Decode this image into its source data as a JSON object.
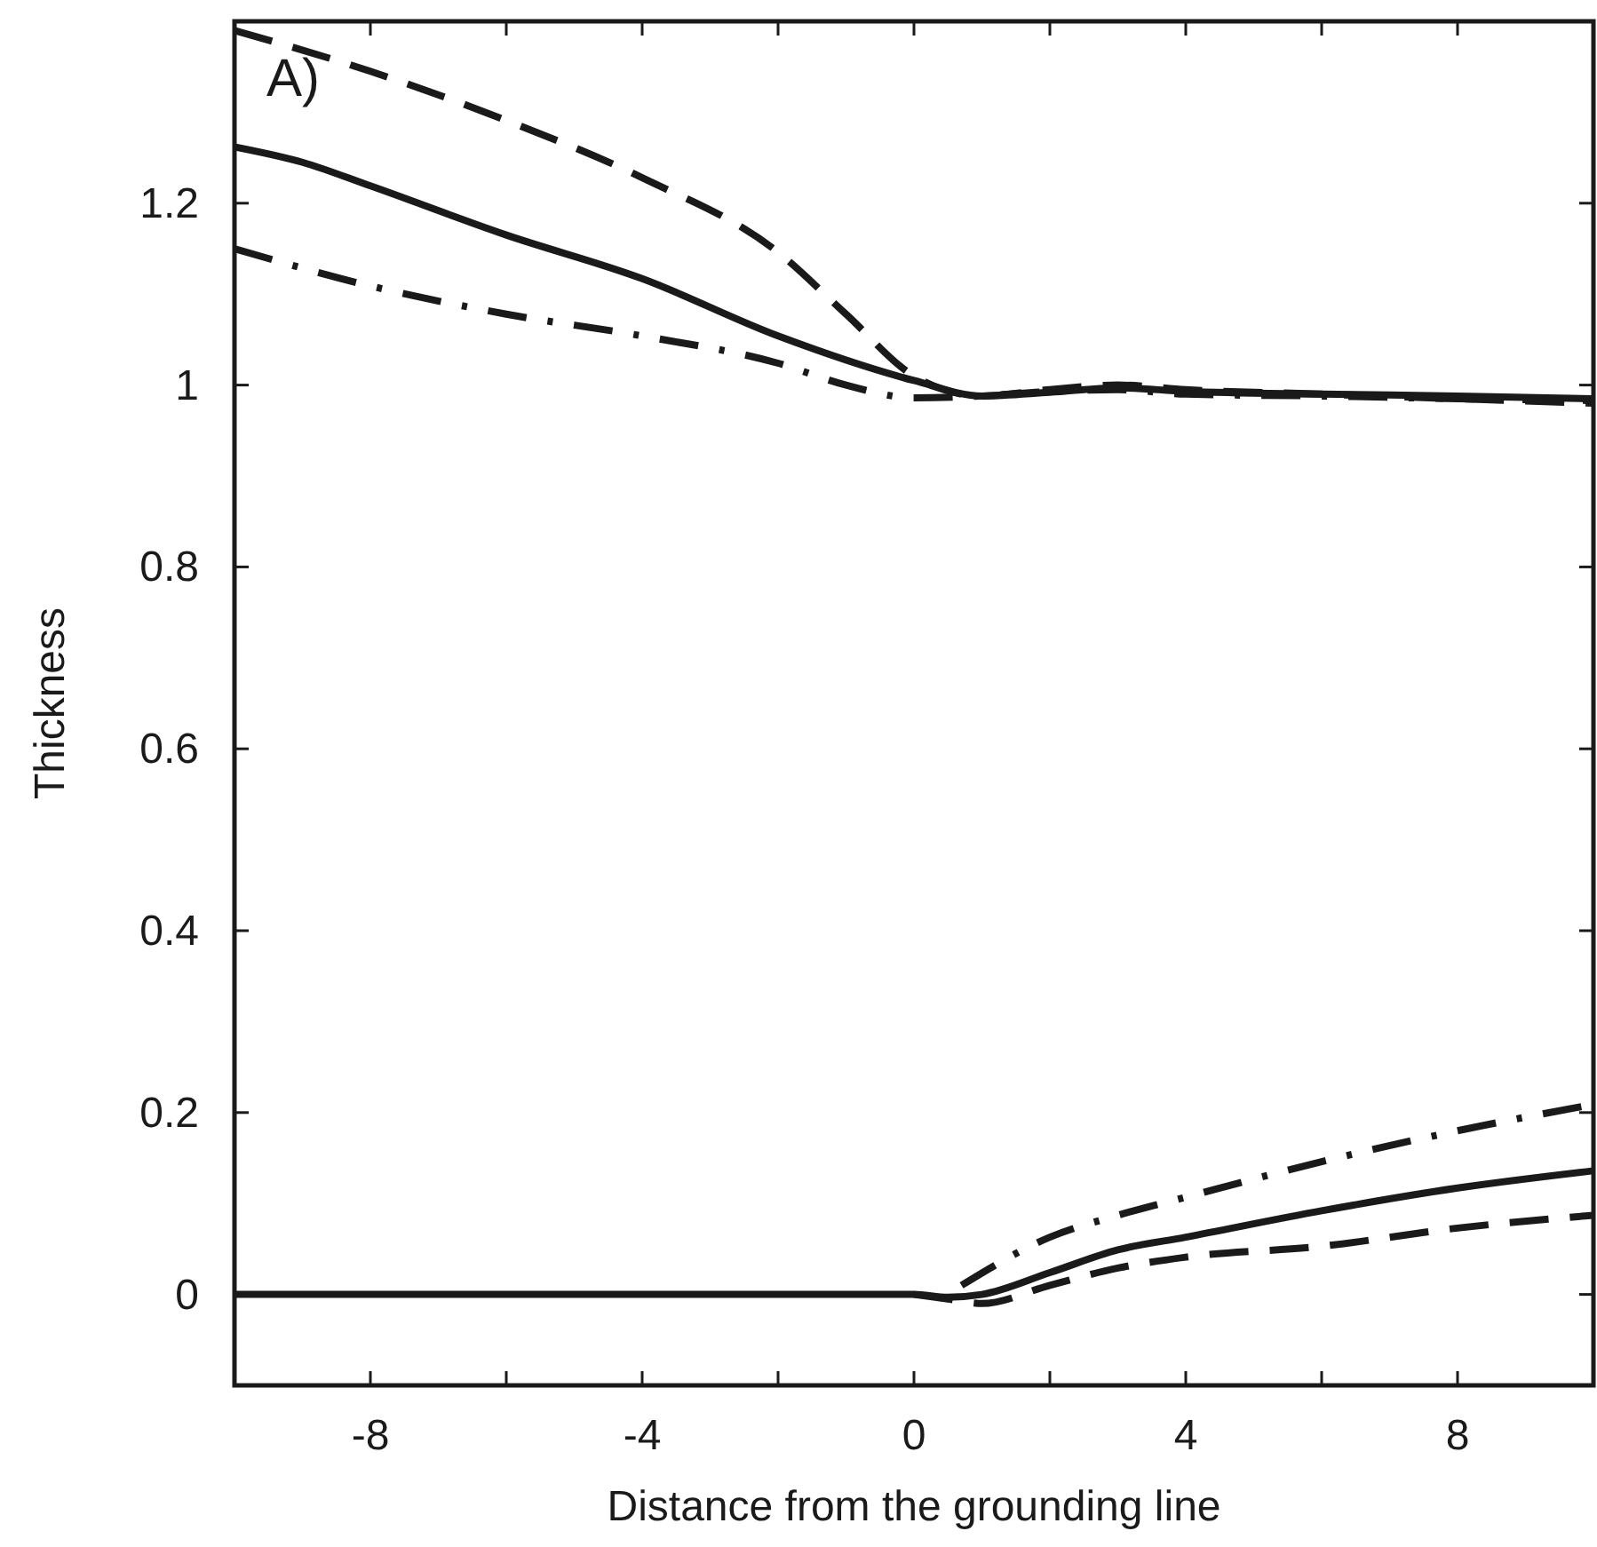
{
  "chart_data": {
    "type": "line",
    "xlabel": "Distance from the grounding line",
    "ylabel": "Thickness",
    "annotations": [
      "A)"
    ],
    "xlim": [
      -10,
      10
    ],
    "ylim": [
      -0.1,
      1.4
    ],
    "xticks": [
      -8,
      {
        "value": -6,
        "label": null
      },
      -4,
      {
        "value": -2,
        "label": null
      },
      0,
      {
        "value": 2,
        "label": null
      },
      4,
      {
        "value": 6,
        "label": null
      },
      8
    ],
    "yticks": [
      0,
      0.2,
      0.4,
      0.6,
      0.8,
      1,
      1.2
    ],
    "series": [
      {
        "color": "#1a1a1a",
        "line_style": "solid",
        "x": [
          -10,
          -9,
          -8,
          -6,
          -4,
          -2,
          0,
          1,
          2,
          3,
          4,
          6,
          8,
          10
        ],
        "values": [
          1.262,
          1.245,
          1.219,
          1.165,
          1.117,
          1.054,
          1.005,
          0.988,
          0.992,
          0.997,
          0.993,
          0.99,
          0.988,
          0.985
        ]
      },
      {
        "color": "#1a1a1a",
        "line_style": "dashed",
        "x": [
          -10,
          -8,
          -6,
          -4,
          -2,
          -1,
          0,
          1,
          2,
          3,
          4,
          6,
          8,
          10
        ],
        "values": [
          1.39,
          1.345,
          1.291,
          1.228,
          1.146,
          1.078,
          1.01,
          0.988,
          0.995,
          1.0,
          0.995,
          0.99,
          0.985,
          0.98
        ]
      },
      {
        "color": "#1a1a1a",
        "line_style": "dashdot",
        "x": [
          -10,
          -8,
          -6,
          -4,
          -2,
          -1,
          0,
          1,
          2,
          3,
          4,
          6,
          8,
          10
        ],
        "values": [
          1.15,
          1.109,
          1.078,
          1.054,
          1.024,
          1.0,
          0.986,
          0.988,
          0.993,
          0.995,
          0.99,
          0.988,
          0.985,
          0.983
        ]
      },
      {
        "color": "#1a1a1a",
        "line_style": "solid",
        "x": [
          -10,
          0,
          0.5,
          1,
          2,
          3,
          4,
          6,
          8,
          10
        ],
        "values": [
          0,
          0,
          -0.003,
          0.0,
          0.024,
          0.049,
          0.063,
          0.092,
          0.117,
          0.136
        ]
      },
      {
        "color": "#1a1a1a",
        "line_style": "dashed",
        "x": [
          0,
          0.5,
          1,
          2,
          3,
          4,
          6,
          8,
          10
        ],
        "values": [
          0,
          -0.005,
          -0.01,
          0.01,
          0.029,
          0.041,
          0.053,
          0.073,
          0.087
        ]
      },
      {
        "color": "#1a1a1a",
        "line_style": "dashdot",
        "x": [
          0.7,
          2,
          3,
          4,
          6,
          8,
          10
        ],
        "values": [
          0.01,
          0.063,
          0.087,
          0.107,
          0.146,
          0.18,
          0.209
        ]
      }
    ]
  }
}
